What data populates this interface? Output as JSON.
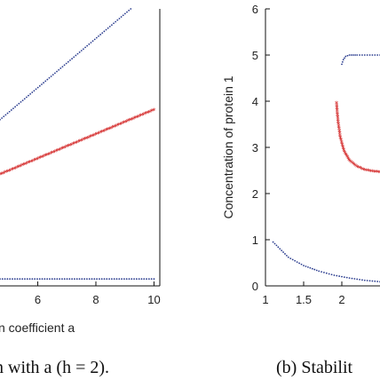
{
  "chart_data": [
    {
      "type": "scatter",
      "panel": "a",
      "title": "",
      "xlabel": "n coefficient a",
      "ylabel": "",
      "xlim": [
        4.7,
        10.2
      ],
      "ylim": [
        0,
        6
      ],
      "x_ticks": [
        6,
        8,
        10
      ],
      "x_tick_labels": [
        "6",
        "8",
        "10"
      ],
      "grid": false,
      "caption": "n with a (h = 2).",
      "colors": {
        "blue": "#2b3d8f",
        "red": "#d42a2a"
      },
      "series": [
        {
          "color": "#2b3d8f",
          "marker": "dot",
          "x": [
            4.7,
            9.2
          ],
          "y": [
            3.6,
            6.0
          ]
        },
        {
          "color": "#d42a2a",
          "marker": "star",
          "x": [
            4.7,
            10.0
          ],
          "y": [
            2.4,
            3.8
          ]
        },
        {
          "color": "#2b3d8f",
          "marker": "dot",
          "x": [
            4.7,
            10.0
          ],
          "y": [
            0.15,
            0.15
          ]
        }
      ]
    },
    {
      "type": "scatter",
      "panel": "b",
      "title": "",
      "xlabel": "",
      "ylabel": "Concentration of protein 1",
      "xlim": [
        1,
        2.5
      ],
      "ylim": [
        0,
        6
      ],
      "x_ticks": [
        1,
        1.5,
        2
      ],
      "x_tick_labels": [
        "1",
        "1.5",
        "2"
      ],
      "y_ticks": [
        0,
        1,
        2,
        3,
        4,
        5,
        6
      ],
      "y_tick_labels": [
        "0",
        "1",
        "2",
        "3",
        "4",
        "5",
        "6"
      ],
      "grid": false,
      "caption": "(b) Stabilit",
      "colors": {
        "blue": "#2b3d8f",
        "red": "#d42a2a"
      },
      "series": [
        {
          "color": "#2b3d8f",
          "marker": "dot",
          "x": [
            2.0,
            2.02,
            2.05,
            2.1,
            2.15,
            2.2,
            2.5
          ],
          "y": [
            4.8,
            4.9,
            4.97,
            5.0,
            5.0,
            5.0,
            5.0
          ]
        },
        {
          "color": "#2b3d8f",
          "marker": "dot",
          "x": [
            1.1,
            1.3,
            1.5,
            1.7,
            1.9,
            2.1,
            2.3,
            2.5
          ],
          "y": [
            0.95,
            0.62,
            0.44,
            0.32,
            0.23,
            0.17,
            0.12,
            0.09
          ]
        },
        {
          "color": "#d42a2a",
          "marker": "star",
          "x": [
            1.93,
            1.95,
            1.98,
            2.03,
            2.1,
            2.2,
            2.3,
            2.4,
            2.5
          ],
          "y": [
            3.95,
            3.55,
            3.2,
            2.9,
            2.7,
            2.57,
            2.5,
            2.47,
            2.45
          ]
        }
      ]
    }
  ]
}
